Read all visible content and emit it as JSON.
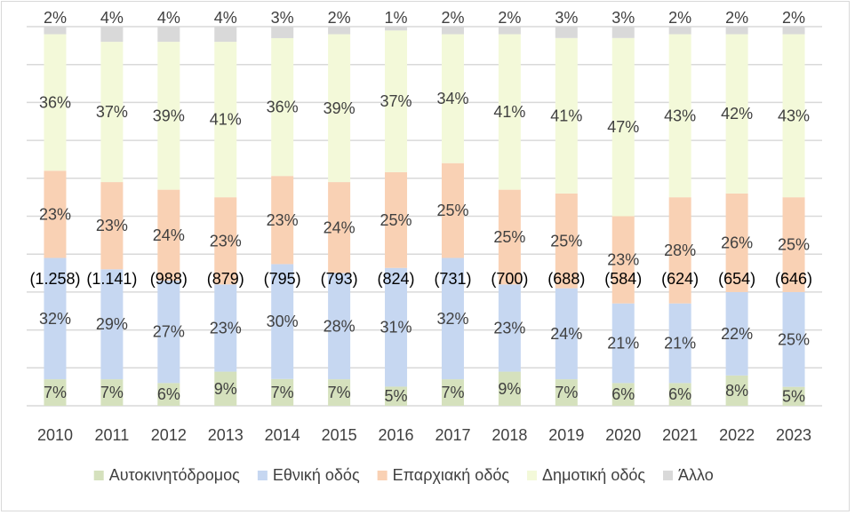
{
  "chart_data": {
    "type": "bar",
    "stacked": "percent",
    "categories": [
      "2010",
      "2011",
      "2012",
      "2013",
      "2014",
      "2015",
      "2016",
      "2017",
      "2018",
      "2019",
      "2020",
      "2021",
      "2022",
      "2023"
    ],
    "series": [
      {
        "name": "Αυτοκινητόδρομος",
        "color": "#d5e1bd",
        "values": [
          7,
          7,
          6,
          9,
          7,
          7,
          5,
          7,
          9,
          7,
          6,
          6,
          8,
          5
        ]
      },
      {
        "name": "Εθνική οδός",
        "color": "#c6d7f1",
        "values": [
          32,
          29,
          27,
          23,
          30,
          28,
          31,
          32,
          23,
          24,
          21,
          21,
          22,
          25
        ]
      },
      {
        "name": "Επαρχιακή οδός",
        "color": "#f9d1b4",
        "values": [
          23,
          23,
          24,
          23,
          23,
          24,
          25,
          25,
          25,
          25,
          23,
          28,
          26,
          25
        ]
      },
      {
        "name": "Δημοτική οδός",
        "color": "#f3f9d9",
        "values": [
          36,
          37,
          39,
          41,
          36,
          39,
          37,
          34,
          41,
          41,
          47,
          43,
          42,
          43
        ]
      },
      {
        "name": "Άλλο",
        "color": "#d9d9d9",
        "values": [
          2,
          4,
          4,
          4,
          3,
          2,
          1,
          2,
          2,
          3,
          3,
          2,
          2,
          2
        ]
      }
    ],
    "totals": [
      "(1.258)",
      "(1.141)",
      "(988)",
      "(879)",
      "(795)",
      "(793)",
      "(824)",
      "(731)",
      "(700)",
      "(688)",
      "(584)",
      "(624)",
      "(654)",
      "(646)"
    ],
    "value_suffix": "%",
    "ylim": [
      0,
      100
    ],
    "grid": true,
    "legend": "bottom",
    "title": "",
    "xlabel": "",
    "ylabel": ""
  }
}
